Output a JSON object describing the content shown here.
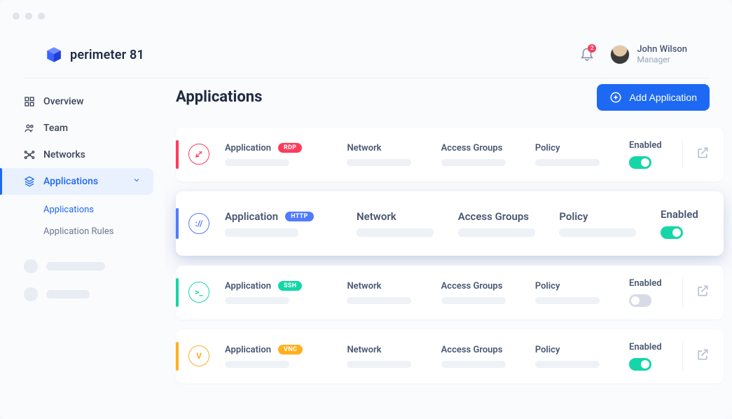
{
  "brand": {
    "name": "perimeter 81"
  },
  "header": {
    "notification_count": "2",
    "user": {
      "name": "John Wilson",
      "role": "Manager"
    }
  },
  "sidebar": {
    "items": [
      {
        "key": "overview",
        "label": "Overview"
      },
      {
        "key": "team",
        "label": "Team"
      },
      {
        "key": "networks",
        "label": "Networks"
      },
      {
        "key": "applications",
        "label": "Applications"
      }
    ],
    "applications_sub": [
      {
        "key": "applications",
        "label": "Applications"
      },
      {
        "key": "application-rules",
        "label": "Application Rules"
      }
    ]
  },
  "page": {
    "title": "Applications",
    "add_button_label": "Add Application"
  },
  "columns": {
    "app": "Application",
    "network": "Network",
    "access": "Access Groups",
    "policy": "Policy",
    "enabled": "Enabled"
  },
  "cards": [
    {
      "protocol": "RDP",
      "proto_bg": "#ff3b5c",
      "stripe": "#ff3b5c",
      "icon_border": "#ff3b5c",
      "icon_text": "",
      "icon_text_color": "#ff3b5c",
      "enabled": true,
      "highlight": false
    },
    {
      "protocol": "HTTP",
      "proto_bg": "#4f7bff",
      "stripe": "#4f7bff",
      "icon_border": "#4f7bff",
      "icon_text": "://",
      "icon_text_color": "#4f7bff",
      "enabled": true,
      "highlight": true
    },
    {
      "protocol": "SSH",
      "proto_bg": "#15d6a8",
      "stripe": "#15d6a8",
      "icon_border": "#15d6a8",
      "icon_text": ">_",
      "icon_text_color": "#15d6a8",
      "enabled": false,
      "highlight": false
    },
    {
      "protocol": "VNC",
      "proto_bg": "#ffb020",
      "stripe": "#ffb020",
      "icon_border": "#ffb020",
      "icon_text": "V",
      "icon_text_color": "#ffb020",
      "enabled": true,
      "highlight": false
    }
  ],
  "palette": {
    "primary": "#1d69f3",
    "bg": "#f5f7fb",
    "card_bg": "#ffffff",
    "text": "#3a4559",
    "muted": "#9aa4ba",
    "skeleton": "#eef1f6",
    "divider": "#eef1f6",
    "toggle_on": "#15d6a8",
    "toggle_off": "#d6dbe6"
  }
}
